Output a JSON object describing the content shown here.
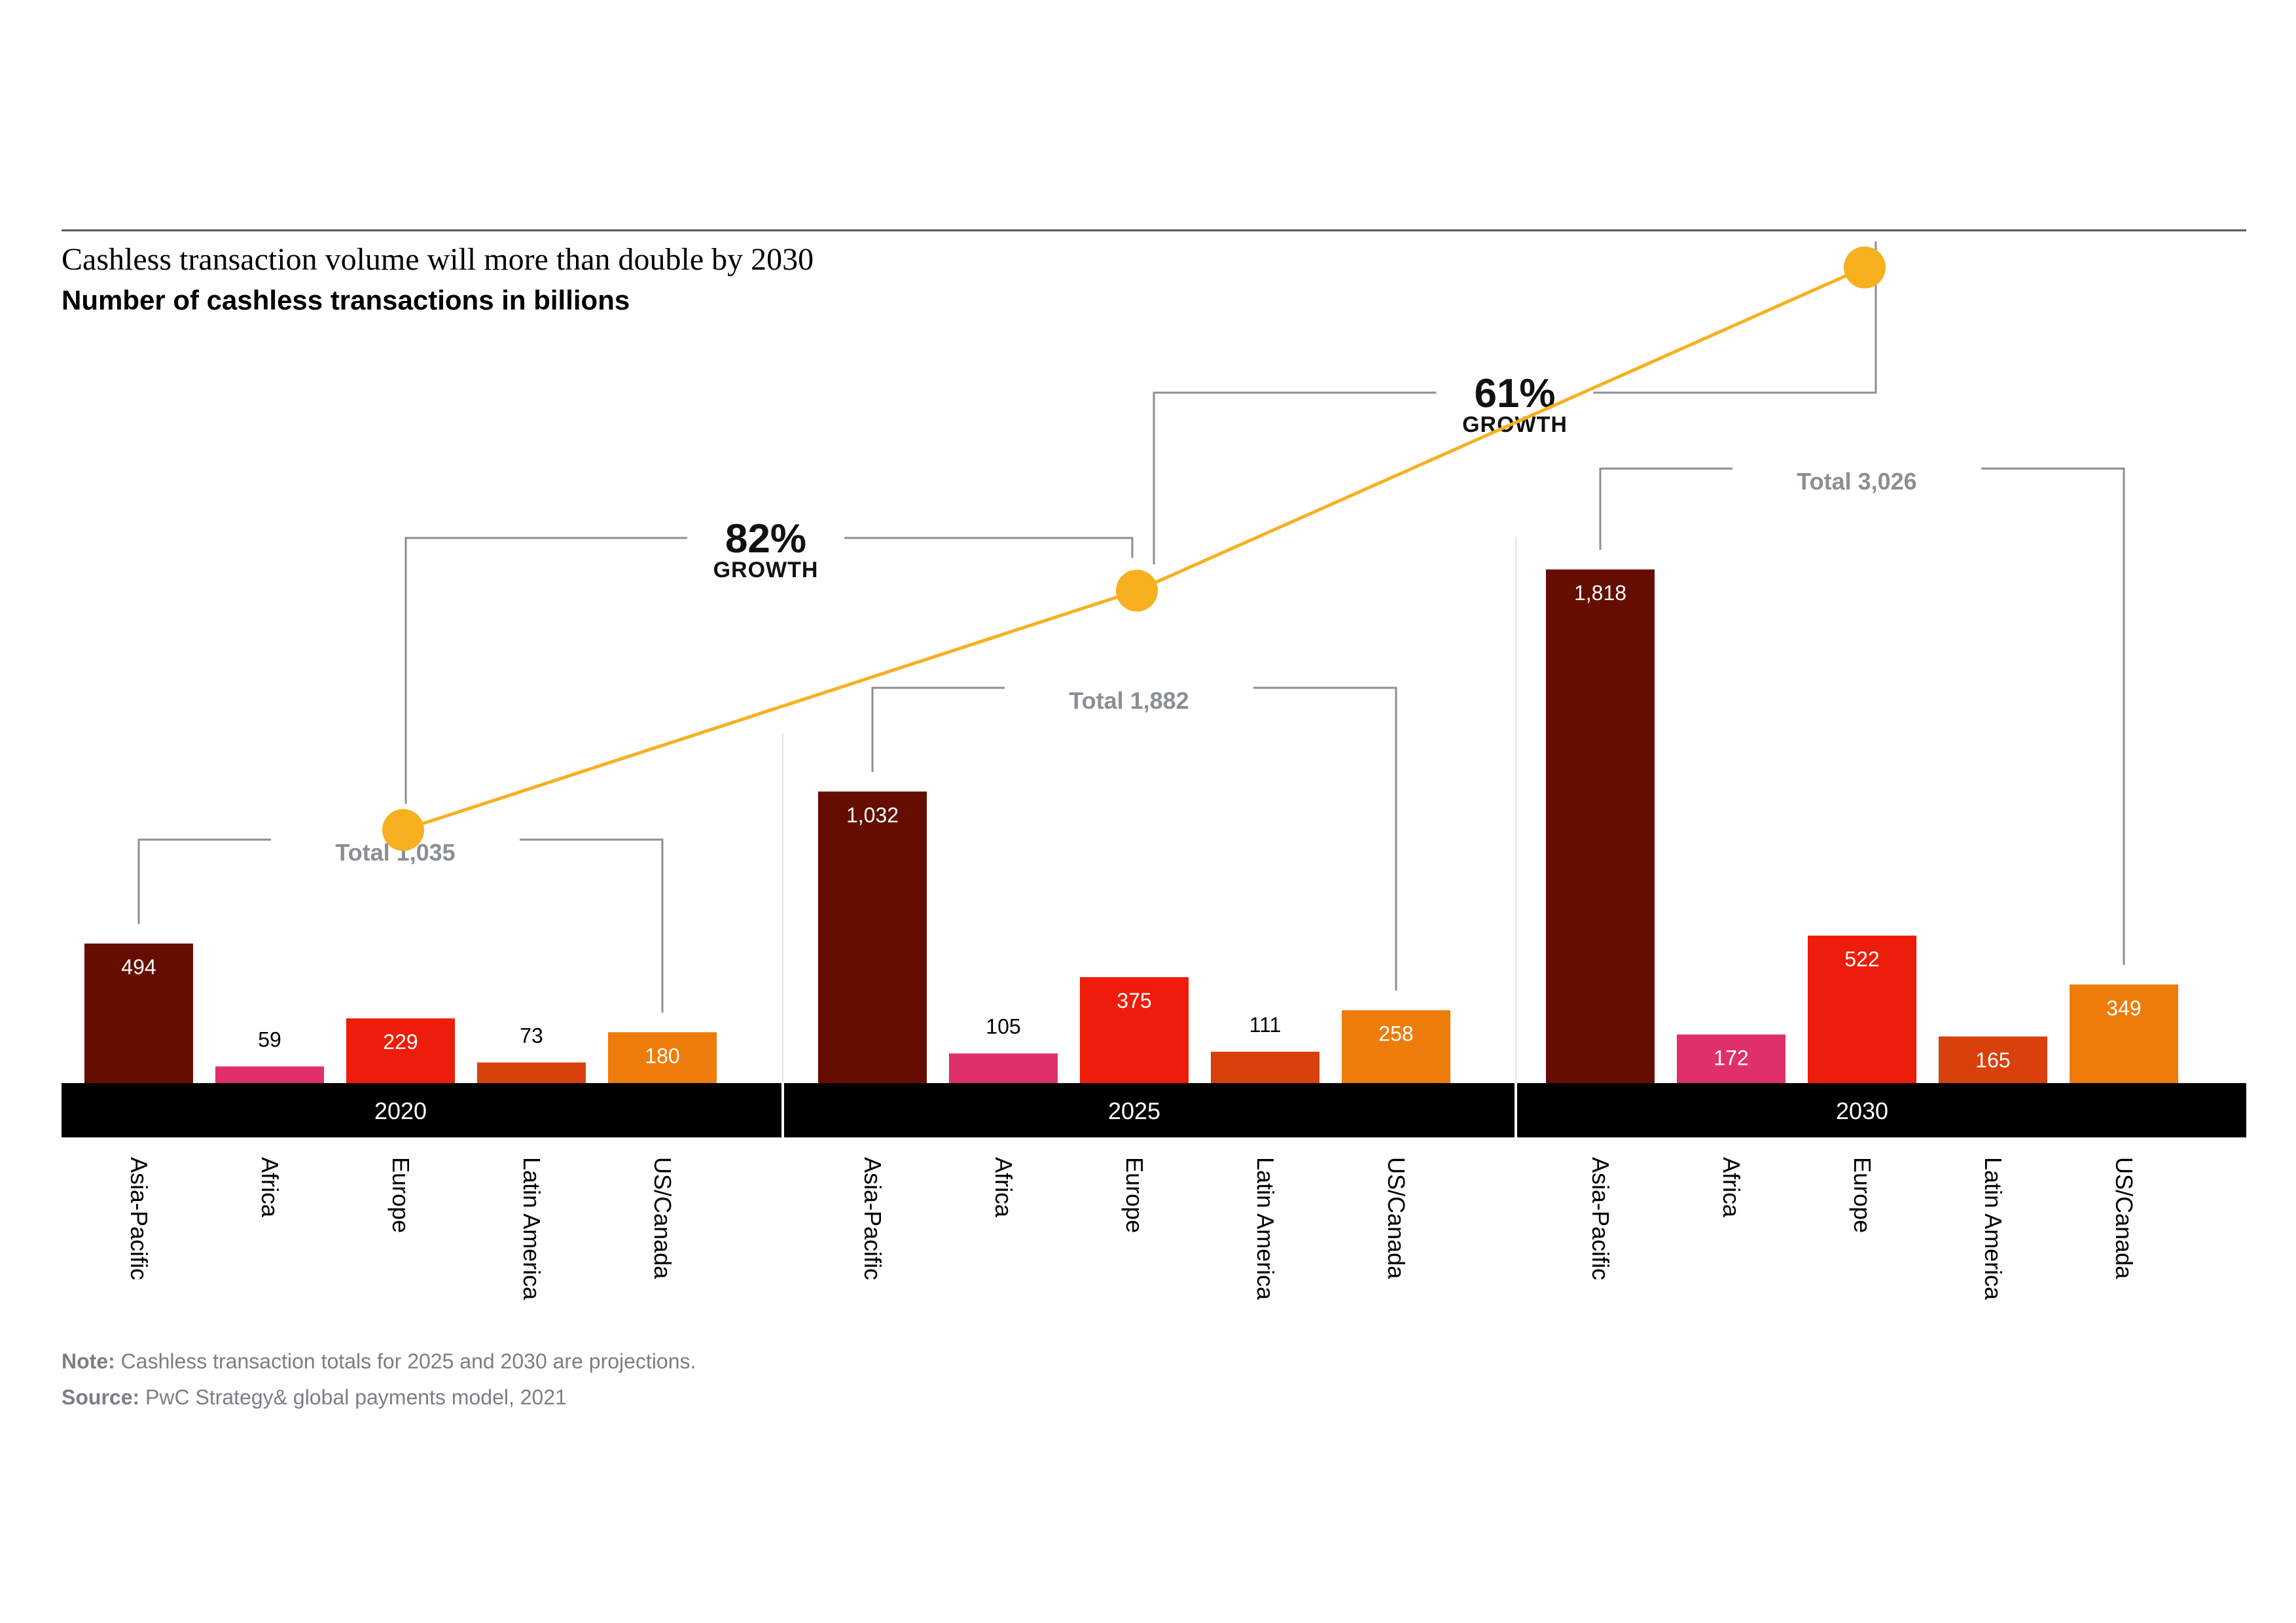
{
  "chart_data": {
    "type": "bar",
    "title": "Cashless transaction volume will more than double by 2030",
    "subtitle": "Number of cashless transactions in billions",
    "groups": [
      "2020",
      "2025",
      "2030"
    ],
    "categories": [
      "Asia-Pacific",
      "Africa",
      "Europe",
      "Latin America",
      "US/Canada"
    ],
    "series": [
      {
        "name": "2020",
        "values": [
          494,
          59,
          229,
          73,
          180
        ],
        "value_labels": [
          "494",
          "59",
          "229",
          "73",
          "180"
        ]
      },
      {
        "name": "2025",
        "values": [
          1032,
          105,
          375,
          111,
          258
        ],
        "value_labels": [
          "1,032",
          "105",
          "375",
          "111",
          "258"
        ]
      },
      {
        "name": "2030",
        "values": [
          1818,
          172,
          522,
          165,
          349
        ],
        "value_labels": [
          "1,818",
          "172",
          "522",
          "165",
          "349"
        ]
      }
    ],
    "totals": [
      {
        "year": "2020",
        "value": 1035,
        "label": "Total 1,035"
      },
      {
        "year": "2025",
        "value": 1882,
        "label": "Total 1,882"
      },
      {
        "year": "2030",
        "value": 3026,
        "label": "Total 3,026"
      }
    ],
    "growth": [
      {
        "from": "2020",
        "to": "2025",
        "pct": "82%",
        "label": "GROWTH"
      },
      {
        "from": "2025",
        "to": "2030",
        "pct": "61%",
        "label": "GROWTH"
      }
    ],
    "ylim": [
      0,
      3200
    ],
    "colors": {
      "Asia-Pacific": "#640d00",
      "Africa": "#e0306a",
      "Europe": "#ee1c0a",
      "Latin America": "#d8400c",
      "US/Canada": "#ee7c0a",
      "total_line": "#f6b020",
      "bracket": "#8a8f94",
      "axis_band": "#000000"
    },
    "value_label_colors": [
      "#ffffff",
      "#000000",
      "#ffffff",
      "#000000",
      "#000000"
    ]
  },
  "note": {
    "label": "Note:",
    "text": "Cashless transaction totals for 2025 and 2030 are projections."
  },
  "source": {
    "label": "Source:",
    "text": "PwC Strategy& global payments model, 2021"
  }
}
